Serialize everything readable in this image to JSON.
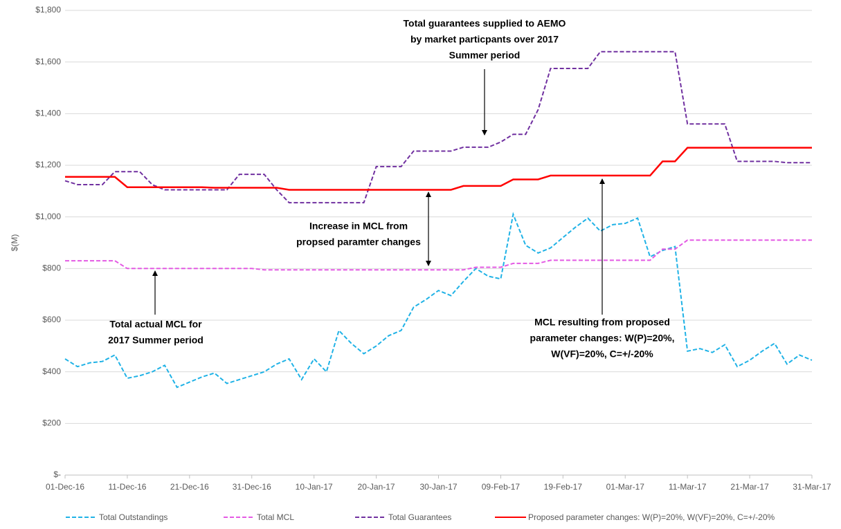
{
  "chart_data": {
    "type": "line",
    "y_label": "$(M)",
    "x": [
      "01-Dec-16",
      "03-Dec-16",
      "05-Dec-16",
      "07-Dec-16",
      "09-Dec-16",
      "11-Dec-16",
      "13-Dec-16",
      "15-Dec-16",
      "17-Dec-16",
      "19-Dec-16",
      "21-Dec-16",
      "23-Dec-16",
      "25-Dec-16",
      "27-Dec-16",
      "29-Dec-16",
      "31-Dec-16",
      "02-Jan-17",
      "04-Jan-17",
      "06-Jan-17",
      "08-Jan-17",
      "10-Jan-17",
      "12-Jan-17",
      "14-Jan-17",
      "16-Jan-17",
      "18-Jan-17",
      "20-Jan-17",
      "22-Jan-17",
      "24-Jan-17",
      "26-Jan-17",
      "28-Jan-17",
      "30-Jan-17",
      "01-Feb-17",
      "03-Feb-17",
      "05-Feb-17",
      "07-Feb-17",
      "09-Feb-17",
      "11-Feb-17",
      "13-Feb-17",
      "15-Feb-17",
      "17-Feb-17",
      "19-Feb-17",
      "21-Feb-17",
      "23-Feb-17",
      "25-Feb-17",
      "27-Feb-17",
      "01-Mar-17",
      "03-Mar-17",
      "05-Mar-17",
      "07-Mar-17",
      "09-Mar-17",
      "11-Mar-17",
      "13-Mar-17",
      "15-Mar-17",
      "17-Mar-17",
      "19-Mar-17",
      "21-Mar-17",
      "23-Mar-17",
      "25-Mar-17",
      "27-Mar-17",
      "29-Mar-17",
      "31-Mar-17"
    ],
    "xlim": [
      "01-Dec-16",
      "31-Mar-17"
    ],
    "xticks": [
      "01-Dec-16",
      "11-Dec-16",
      "21-Dec-16",
      "31-Dec-16",
      "10-Jan-17",
      "20-Jan-17",
      "30-Jan-17",
      "09-Feb-17",
      "19-Feb-17",
      "01-Mar-17",
      "11-Mar-17",
      "21-Mar-17",
      "31-Mar-17"
    ],
    "ylim": [
      0,
      1800
    ],
    "yticks": [
      {
        "value": 0,
        "label": "$-"
      },
      {
        "value": 200,
        "label": "$200"
      },
      {
        "value": 400,
        "label": "$400"
      },
      {
        "value": 600,
        "label": "$600"
      },
      {
        "value": 800,
        "label": "$800"
      },
      {
        "value": 1000,
        "label": "$1,000"
      },
      {
        "value": 1200,
        "label": "$1,200"
      },
      {
        "value": 1400,
        "label": "$1,400"
      },
      {
        "value": 1600,
        "label": "$1,600"
      },
      {
        "value": 1800,
        "label": "$1,800"
      }
    ],
    "grid": true,
    "legend": "bottom",
    "series": [
      {
        "name": "Total Outstandings",
        "color": "#1fb2e6",
        "style": "dashed",
        "values": [
          450,
          420,
          435,
          440,
          465,
          375,
          385,
          400,
          425,
          340,
          360,
          380,
          395,
          355,
          370,
          385,
          400,
          430,
          450,
          370,
          450,
          400,
          560,
          510,
          470,
          500,
          540,
          560,
          650,
          680,
          715,
          695,
          750,
          800,
          770,
          760,
          1010,
          890,
          860,
          880,
          920,
          960,
          995,
          945,
          970,
          975,
          995,
          845,
          870,
          885,
          480,
          490,
          475,
          505,
          420,
          445,
          480,
          510,
          430,
          465,
          445
        ]
      },
      {
        "name": "Total MCL",
        "color": "#e45ae4",
        "style": "dashed",
        "values": [
          830,
          830,
          830,
          830,
          830,
          800,
          800,
          800,
          800,
          800,
          800,
          800,
          800,
          800,
          800,
          800,
          795,
          795,
          795,
          795,
          795,
          795,
          795,
          795,
          795,
          795,
          795,
          795,
          795,
          795,
          795,
          795,
          795,
          805,
          805,
          805,
          820,
          820,
          820,
          832,
          832,
          832,
          832,
          832,
          832,
          832,
          832,
          832,
          875,
          875,
          910,
          910,
          910,
          910,
          910,
          910,
          910,
          910,
          910,
          910,
          910
        ]
      },
      {
        "name": "Total Guarantees",
        "color": "#7030a0",
        "style": "dashed",
        "values": [
          1140,
          1125,
          1125,
          1125,
          1175,
          1175,
          1175,
          1125,
          1105,
          1105,
          1105,
          1105,
          1105,
          1105,
          1165,
          1165,
          1165,
          1105,
          1055,
          1055,
          1055,
          1055,
          1055,
          1055,
          1055,
          1195,
          1195,
          1195,
          1255,
          1255,
          1255,
          1255,
          1270,
          1270,
          1270,
          1290,
          1320,
          1320,
          1415,
          1575,
          1575,
          1575,
          1575,
          1640,
          1640,
          1640,
          1640,
          1640,
          1640,
          1640,
          1360,
          1360,
          1360,
          1360,
          1215,
          1215,
          1215,
          1215,
          1210,
          1210,
          1210
        ]
      },
      {
        "name": "Proposed parameter changes: W(P)=20%, W(VF)=20%, C=+/-20%",
        "color": "#ff0000",
        "style": "solid",
        "values": [
          1155,
          1155,
          1155,
          1155,
          1155,
          1115,
          1115,
          1115,
          1115,
          1115,
          1115,
          1115,
          1113,
          1113,
          1113,
          1113,
          1113,
          1113,
          1105,
          1105,
          1105,
          1105,
          1105,
          1105,
          1105,
          1105,
          1105,
          1105,
          1105,
          1105,
          1105,
          1105,
          1120,
          1120,
          1120,
          1120,
          1145,
          1145,
          1145,
          1160,
          1160,
          1160,
          1160,
          1160,
          1160,
          1160,
          1160,
          1160,
          1215,
          1215,
          1268,
          1268,
          1268,
          1268,
          1268,
          1268,
          1268,
          1268,
          1268,
          1268,
          1268
        ]
      }
    ],
    "annotations": [
      [
        "Total guarantees supplied to AEMO",
        "by market particpants over 2017",
        "Summer period"
      ],
      [
        "Increase in MCL from",
        "propsed paramter changes"
      ],
      [
        "Total actual MCL for",
        "2017 Summer period"
      ],
      [
        "MCL resulting from proposed",
        "parameter changes: W(P)=20%,",
        "W(VF)=20%, C=+/-20%"
      ]
    ]
  }
}
